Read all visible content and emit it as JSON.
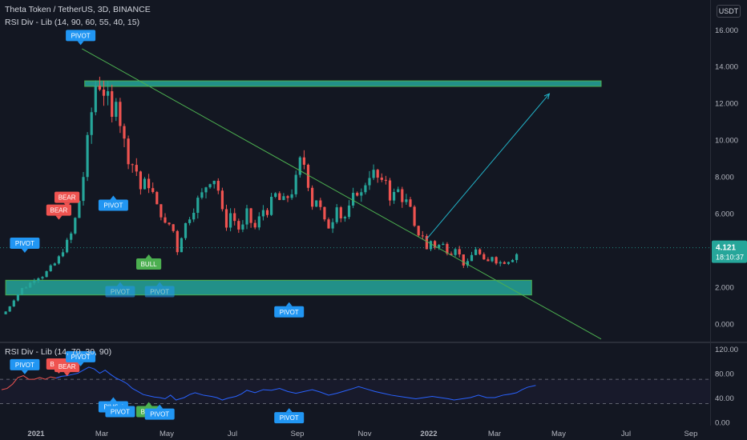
{
  "header": {
    "symbol_line": "Theta Token / TetherUS, 3D, BINANCE",
    "indicator_line": "RSI Div - Lib (14, 90, 60, 55, 40, 15)",
    "currency_badge": "USDT",
    "rsi_pane_line": "RSI Div - Lib (14, 70, 30, 90)"
  },
  "colors": {
    "background": "#131722",
    "up": "#26a69a",
    "down": "#ef5350",
    "zone": "#26a69a",
    "trendline": "#4caf50",
    "arrow": "#22b3c8",
    "rsi_line": "#2962ff",
    "rsi_early": "#ef5350",
    "pivot_label": "#2196f3",
    "bear_label": "#ef5350",
    "bull_label": "#4caf50"
  },
  "chart_data": [
    {
      "type": "candlestick",
      "title": "Theta Token / TetherUS, 3D, BINANCE",
      "y_axis_ticks": [
        "16.000",
        "14.000",
        "12.000",
        "10.000",
        "8.000",
        "6.000",
        "4.000",
        "2.000",
        "0.000"
      ],
      "y_axis_values": [
        16,
        14,
        12,
        10,
        8,
        6,
        4,
        2,
        0
      ],
      "ylim": [
        -0.9,
        17.6
      ],
      "x_axis_labels": [
        "2021",
        "Mar",
        "May",
        "Jul",
        "Sep",
        "Nov",
        "2022",
        "Mar",
        "May",
        "Jul",
        "Sep"
      ],
      "last_price": "4.121",
      "countdown": "18:10:37",
      "ohlc_path": [
        [
          0.5,
          0
        ],
        [
          0.7,
          4
        ],
        [
          1.2,
          8
        ],
        [
          1.6,
          12
        ],
        [
          1.9,
          15
        ],
        [
          2.0,
          18
        ],
        [
          2.2,
          21
        ],
        [
          2.5,
          25
        ],
        [
          2.6,
          30
        ],
        [
          2.8,
          33
        ],
        [
          3.1,
          37
        ],
        [
          3.4,
          41
        ],
        [
          3.9,
          44
        ],
        [
          4.4,
          48
        ],
        [
          5.0,
          52
        ],
        [
          6.0,
          55
        ],
        [
          7.4,
          59
        ],
        [
          9.3,
          62
        ],
        [
          11.5,
          66
        ],
        [
          13.5,
          70
        ],
        [
          12.8,
          73
        ],
        [
          12.5,
          77
        ],
        [
          11.0,
          81
        ],
        [
          12.6,
          84
        ],
        [
          10.5,
          88
        ],
        [
          9.2,
          92
        ],
        [
          8.8,
          95
        ],
        [
          8.3,
          99
        ],
        [
          7.0,
          103
        ],
        [
          7.9,
          106
        ],
        [
          7.3,
          110
        ],
        [
          6.3,
          114
        ],
        [
          6.0,
          117
        ],
        [
          5.1,
          121
        ],
        [
          5.7,
          125
        ],
        [
          3.7,
          128
        ],
        [
          4.8,
          132
        ],
        [
          5.6,
          136
        ],
        [
          6.0,
          139
        ],
        [
          6.6,
          143
        ],
        [
          7.0,
          147
        ],
        [
          7.5,
          150
        ],
        [
          8.0,
          154
        ],
        [
          7.8,
          158
        ],
        [
          6.2,
          161
        ],
        [
          5.4,
          165
        ],
        [
          6.2,
          169
        ],
        [
          5.3,
          172
        ],
        [
          5.0,
          176
        ],
        [
          6.0,
          180
        ],
        [
          5.5,
          183
        ],
        [
          5.1,
          187
        ],
        [
          6.3,
          191
        ],
        [
          6.0,
          194
        ],
        [
          6.6,
          198
        ],
        [
          7.1,
          202
        ],
        [
          6.5,
          205
        ],
        [
          6.8,
          209
        ],
        [
          7.2,
          213
        ],
        [
          7.8,
          216
        ],
        [
          9.1,
          220
        ],
        [
          8.3,
          224
        ],
        [
          6.4,
          227
        ],
        [
          6.8,
          231
        ],
        [
          6.0,
          235
        ],
        [
          5.2,
          238
        ],
        [
          5.4,
          242
        ],
        [
          6.6,
          246
        ],
        [
          5.8,
          249
        ],
        [
          5.8,
          253
        ],
        [
          6.6,
          257
        ],
        [
          7.3,
          260
        ],
        [
          7.0,
          264
        ],
        [
          7.9,
          268
        ],
        [
          8.3,
          271
        ],
        [
          8.0,
          275
        ],
        [
          7.5,
          279
        ],
        [
          7.9,
          282
        ],
        [
          6.6,
          286
        ],
        [
          7.4,
          290
        ],
        [
          6.9,
          293
        ],
        [
          6.6,
          297
        ],
        [
          6.0,
          301
        ],
        [
          4.7,
          304
        ],
        [
          5.1,
          308
        ],
        [
          4.0,
          312
        ],
        [
          4.5,
          315
        ],
        [
          4.1,
          319
        ],
        [
          4.4,
          323
        ],
        [
          4.0,
          326
        ],
        [
          3.9,
          330
        ],
        [
          4.3,
          334
        ],
        [
          3.4,
          337
        ],
        [
          3.1,
          341
        ],
        [
          3.7,
          345
        ],
        [
          4.1,
          348
        ],
        [
          3.6,
          352
        ],
        [
          3.1,
          356
        ],
        [
          3.8,
          359
        ],
        [
          3.4,
          363
        ],
        [
          3.3,
          367
        ],
        [
          3.4,
          370
        ],
        [
          3.5,
          374
        ],
        [
          3.8,
          378
        ],
        [
          4.1,
          380
        ]
      ],
      "zones": [
        {
          "name": "resistance",
          "from": 12.9,
          "to": 13.2,
          "start_day": 61,
          "end_day": 440
        },
        {
          "name": "support",
          "from": 1.55,
          "to": 2.35,
          "start_day": 3,
          "end_day": 389
        }
      ],
      "trendline": {
        "from": [
          59,
          14.95
        ],
        "to": [
          440,
          -0.85
        ]
      },
      "projection_arrow": {
        "from": [
          312,
          4.6
        ],
        "to": [
          402,
          12.5
        ]
      }
    },
    {
      "type": "line",
      "title": "RSI Div - Lib (14, 70, 30, 90)",
      "y_axis_ticks": [
        "120.00",
        "80.00",
        "40.00",
        "0.00"
      ],
      "y_axis_values": [
        120,
        80,
        40,
        0
      ],
      "ylim": [
        -6,
        128
      ],
      "guides": [
        70,
        30
      ],
      "rsi_path": [
        [
          53,
          0
        ],
        [
          55,
          4
        ],
        [
          62,
          8
        ],
        [
          73,
          12
        ],
        [
          76,
          16
        ],
        [
          70,
          20
        ],
        [
          70,
          24
        ],
        [
          73,
          28
        ],
        [
          70,
          32
        ],
        [
          74,
          36
        ],
        [
          72,
          40
        ],
        [
          75,
          44
        ],
        [
          76,
          48
        ],
        [
          78,
          52
        ],
        [
          80,
          56
        ],
        [
          85,
          60
        ],
        [
          90,
          64
        ],
        [
          87,
          68
        ],
        [
          80,
          72
        ],
        [
          85,
          76
        ],
        [
          78,
          80
        ],
        [
          72,
          84
        ],
        [
          68,
          88
        ],
        [
          63,
          92
        ],
        [
          55,
          96
        ],
        [
          50,
          100
        ],
        [
          45,
          104
        ],
        [
          43,
          108
        ],
        [
          41,
          112
        ],
        [
          40,
          116
        ],
        [
          38,
          120
        ],
        [
          44,
          124
        ],
        [
          36,
          128
        ],
        [
          40,
          134
        ],
        [
          45,
          138
        ],
        [
          48,
          142
        ],
        [
          44,
          148
        ],
        [
          42,
          154
        ],
        [
          40,
          158
        ],
        [
          36,
          162
        ],
        [
          39,
          166
        ],
        [
          42,
          172
        ],
        [
          46,
          176
        ],
        [
          52,
          180
        ],
        [
          48,
          186
        ],
        [
          53,
          192
        ],
        [
          52,
          198
        ],
        [
          55,
          204
        ],
        [
          50,
          210
        ],
        [
          47,
          216
        ],
        [
          50,
          222
        ],
        [
          53,
          228
        ],
        [
          49,
          234
        ],
        [
          44,
          240
        ],
        [
          47,
          246
        ],
        [
          51,
          252
        ],
        [
          55,
          258
        ],
        [
          58,
          262
        ],
        [
          54,
          268
        ],
        [
          50,
          274
        ],
        [
          47,
          280
        ],
        [
          44,
          286
        ],
        [
          42,
          292
        ],
        [
          40,
          298
        ],
        [
          38,
          304
        ],
        [
          40,
          310
        ],
        [
          42,
          316
        ],
        [
          40,
          322
        ],
        [
          38,
          328
        ],
        [
          36,
          332
        ],
        [
          38,
          338
        ],
        [
          40,
          344
        ],
        [
          44,
          350
        ],
        [
          40,
          356
        ],
        [
          40,
          362
        ],
        [
          44,
          368
        ],
        [
          46,
          374
        ],
        [
          48,
          378
        ],
        [
          53,
          382
        ],
        [
          57,
          386
        ],
        [
          60,
          392
        ]
      ]
    }
  ],
  "markers": {
    "main": [
      {
        "kind": "pivot",
        "label": "PIVOT",
        "day": 58,
        "price": 15.1,
        "pos": "above",
        "style": "solid"
      },
      {
        "kind": "pivot",
        "label": "PIVOT",
        "day": 17,
        "price": 3.8,
        "pos": "above",
        "style": "solid"
      },
      {
        "kind": "bear",
        "label": "BEAR",
        "day": 48,
        "price": 6.3,
        "pos": "above",
        "style": "solid"
      },
      {
        "kind": "bear",
        "label": "BEAR",
        "day": 42,
        "price": 5.6,
        "pos": "above",
        "style": "solid"
      },
      {
        "kind": "pivot",
        "label": "PIVOT",
        "day": 82,
        "price": 7.0,
        "pos": "below",
        "style": "solid"
      },
      {
        "kind": "bull",
        "label": "BULL",
        "day": 108,
        "price": 3.8,
        "pos": "below",
        "style": "solid"
      },
      {
        "kind": "pivot",
        "label": "PIVOT",
        "day": 87,
        "price": 2.3,
        "pos": "below",
        "style": "faded"
      },
      {
        "kind": "pivot",
        "label": "PIVOT",
        "day": 116,
        "price": 2.3,
        "pos": "below",
        "style": "faded"
      },
      {
        "kind": "pivot",
        "label": "PIVOT",
        "day": 211,
        "price": 1.2,
        "pos": "below",
        "style": "solid"
      }
    ],
    "rsi": [
      {
        "kind": "pivot",
        "label": "PIVOT",
        "day": 17,
        "value": 77,
        "pos": "above"
      },
      {
        "kind": "bear",
        "label": "BEAR",
        "day": 42,
        "value": 78,
        "pos": "above"
      },
      {
        "kind": "bear",
        "label": "BEAR",
        "day": 48,
        "value": 74,
        "pos": "above"
      },
      {
        "kind": "pivot",
        "label": "PIVOT",
        "day": 58,
        "value": 90,
        "pos": "above"
      },
      {
        "kind": "pivot",
        "label": "PIVOT",
        "day": 82,
        "value": 42,
        "pos": "below"
      },
      {
        "kind": "pivot",
        "label": "PIVOT",
        "day": 87,
        "value": 34,
        "pos": "below"
      },
      {
        "kind": "bull",
        "label": "BULL",
        "day": 108,
        "value": 34,
        "pos": "below"
      },
      {
        "kind": "pivot",
        "label": "PIVOT",
        "day": 116,
        "value": 30,
        "pos": "below"
      },
      {
        "kind": "pivot",
        "label": "PIVOT",
        "day": 211,
        "value": 24,
        "pos": "below"
      }
    ]
  }
}
